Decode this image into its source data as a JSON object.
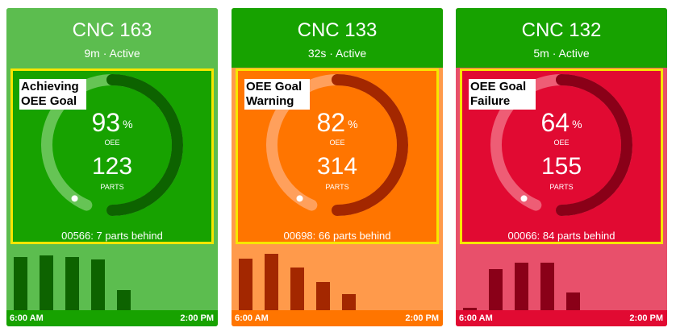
{
  "machines": [
    {
      "name": "CNC 163",
      "status": "9m · Active",
      "goal_label": "Achieving OEE Goal",
      "oee": 93,
      "oee_unit": "%",
      "oee_caption": "OEE",
      "parts": 123,
      "parts_caption": "PARTS",
      "behind": "00566: 7 parts behind",
      "time_start": "6:00 AM",
      "time_end": "2:00 PM",
      "hourly_parts": [
        66,
        68,
        66,
        63,
        25
      ],
      "colors": {
        "header": "#5cbd4f",
        "box": "#17a200",
        "ring_track": "#66c455",
        "ring_fill": "#0d6300",
        "bars_bg": "#5cbd4f",
        "bar": "#0d6300",
        "timeline": "#17a200"
      }
    },
    {
      "name": "CNC 133",
      "status": "32s · Active",
      "goal_label": "OEE Goal Warning",
      "oee": 82,
      "oee_unit": "%",
      "oee_caption": "OEE",
      "parts": 314,
      "parts_caption": "PARTS",
      "behind": "00698: 66 parts behind",
      "time_start": "6:00 AM",
      "time_end": "2:00 PM",
      "hourly_parts": [
        64,
        70,
        53,
        35,
        20
      ],
      "colors": {
        "header": "#17a200",
        "box": "#ff7500",
        "ring_track": "#ffa05c",
        "ring_fill": "#a32700",
        "bars_bg": "#ff9a4b",
        "bar": "#a32700",
        "timeline": "#ff7500"
      }
    },
    {
      "name": "CNC 132",
      "status": "5m · Active",
      "goal_label": "OEE Goal Failure",
      "oee": 64,
      "oee_unit": "%",
      "oee_caption": "OEE",
      "parts": 155,
      "parts_caption": "PARTS",
      "behind": "00066: 84 parts behind",
      "time_start": "6:00 AM",
      "time_end": "2:00 PM",
      "hourly_parts": [
        3,
        51,
        59,
        59,
        22
      ],
      "colors": {
        "header": "#17a200",
        "box": "#e10a32",
        "ring_track": "#ee5d75",
        "ring_fill": "#8a0018",
        "bars_bg": "#e8506b",
        "bar": "#8a0018",
        "timeline": "#e10a32"
      }
    }
  ]
}
